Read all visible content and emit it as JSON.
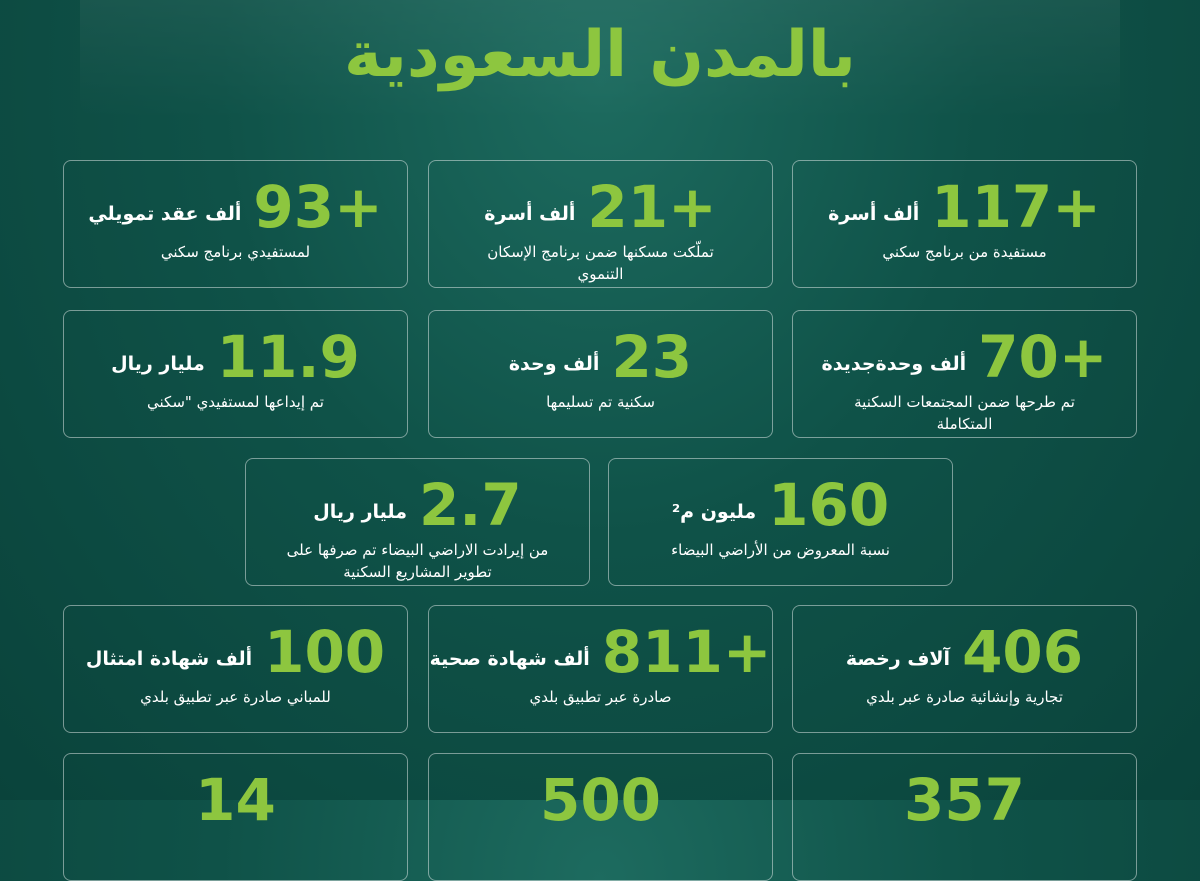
{
  "header": {
    "title": "بالمدن السعودية"
  },
  "cards": [
    {
      "number": "+117",
      "unit": "ألف أسرة",
      "description": "مستفيدة من برنامج سكني"
    },
    {
      "number": "+21",
      "unit": "ألف أسرة",
      "description": "تملّكت مسكنها ضمن برنامج الإسكان التنموي"
    },
    {
      "number": "+93",
      "unit": "ألف عقد تمويلي",
      "description": "لمستفيدي برنامج سكني"
    },
    {
      "number": "+70",
      "unit": "ألف وحدةجديدة",
      "description": "تم طرحها ضمن المجتمعات السكنية المتكاملة"
    },
    {
      "number": "23",
      "unit": "ألف وحدة",
      "description": "سكنية تم تسليمها"
    },
    {
      "number": "11.9",
      "unit": "مليار ريال",
      "description": "تم إيداعها لمستفيدي \"سكني"
    },
    {
      "number": "160",
      "unit": "مليون م²",
      "description": "نسبة المعروض من الأراضي البيضاء"
    },
    {
      "number": "2.7",
      "unit": "مليار ريال",
      "description": "من إيرادت الاراضي البيضاء تم صرفها على تطوير المشاريع السكنية"
    },
    {
      "number": "406",
      "unit": "آلاف رخصة",
      "description": "تجارية وإنشائية صادرة عبر بلدي"
    },
    {
      "number": "+811",
      "unit": "ألف شهادة صحية",
      "description": "صادرة عبر تطبيق بلدي"
    },
    {
      "number": "100",
      "unit": "ألف شهادة امتثال",
      "description": "للمباني صادرة عبر تطبيق بلدي"
    },
    {
      "number": "357"
    },
    {
      "number": "500"
    },
    {
      "number": "14"
    }
  ]
}
